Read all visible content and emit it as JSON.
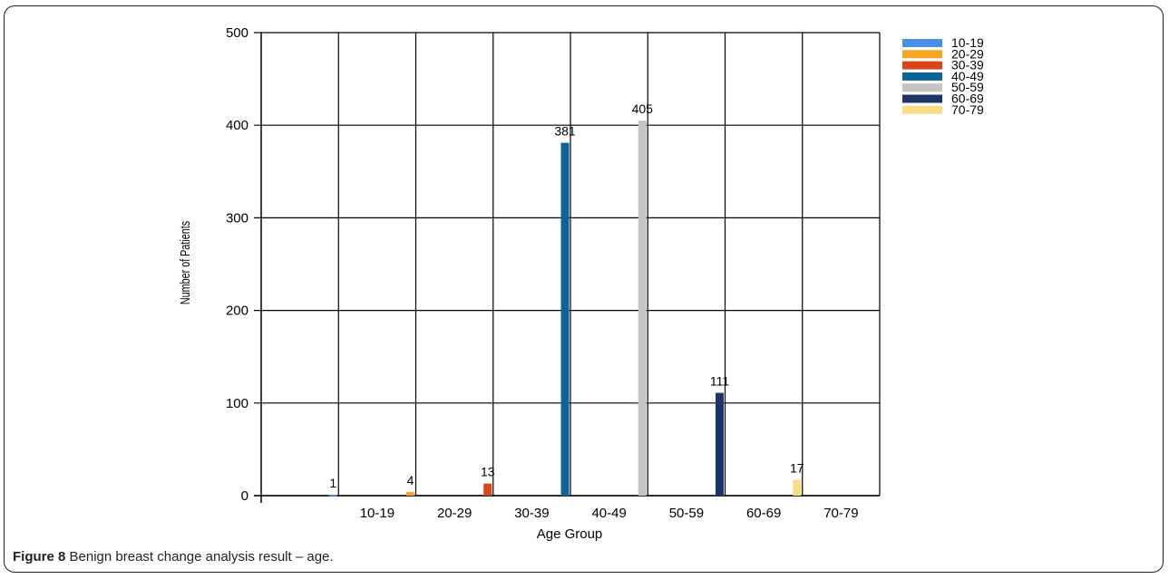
{
  "caption": {
    "label": "Figure 8",
    "text": " Benign breast change analysis result – age."
  },
  "chart_data": {
    "type": "bar",
    "categories": [
      "10-19",
      "20-29",
      "30-39",
      "40-49",
      "50-59",
      "60-69",
      "70-79"
    ],
    "values": [
      1,
      4,
      13,
      381,
      405,
      111,
      17
    ],
    "xlabel": "Age Group",
    "ylabel": "Number of Patients",
    "ylim": [
      0,
      500
    ],
    "yticks": [
      0,
      100,
      200,
      300,
      400,
      500
    ],
    "grid": true,
    "legend_position": "top-right",
    "colors": [
      "#4a8fe7",
      "#f5a623",
      "#d9441a",
      "#0c6496",
      "#c4c4c4",
      "#1c3566",
      "#f9dc84"
    ]
  }
}
